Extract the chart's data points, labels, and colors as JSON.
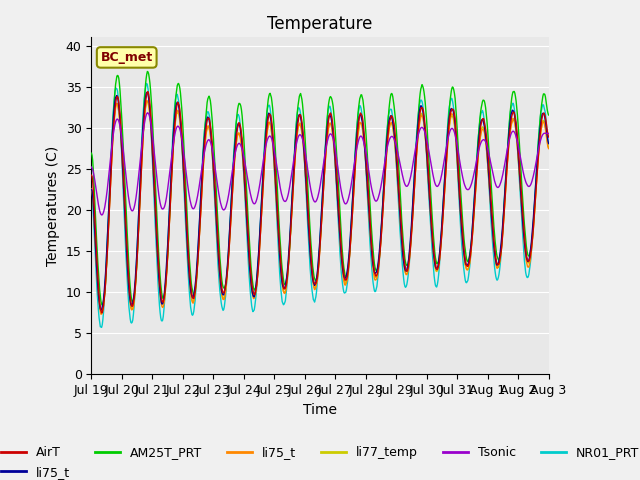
{
  "title": "Temperature",
  "xlabel": "Time",
  "ylabel": "Temperatures (C)",
  "ylim": [
    0,
    41
  ],
  "yticks": [
    0,
    5,
    10,
    15,
    20,
    25,
    30,
    35,
    40
  ],
  "annotation": "BC_met",
  "background_color": "#e8e8e8",
  "series_colors": {
    "AirT": "#cc0000",
    "li75_t_blue": "#000099",
    "AM25T_PRT": "#00cc00",
    "li75_t_orange": "#ff8800",
    "li77_temp": "#cccc00",
    "Tsonic": "#9900cc",
    "NR01_PRT": "#00cccc"
  },
  "legend_labels": [
    "AirT",
    "li75_t",
    "AM25T_PRT",
    "li75_t",
    "li77_temp",
    "Tsonic",
    "NR01_PRT"
  ],
  "legend_colors": [
    "#cc0000",
    "#000099",
    "#00cc00",
    "#ff8800",
    "#cccc00",
    "#9900cc",
    "#00cccc"
  ],
  "n_days": 15,
  "start_day": 18,
  "tick_labels": [
    "Jul 19",
    "Jul 20",
    "Jul 21",
    "Jul 22",
    "Jul 23",
    "Jul 24",
    "Jul 25",
    "Jul 26",
    "Jul 27",
    "Jul 28",
    "Jul 29",
    "Jul 30",
    "Jul 31",
    "Aug 1",
    "Aug 2",
    "Aug 3"
  ],
  "title_fontsize": 12,
  "axis_fontsize": 10,
  "tick_fontsize": 9
}
